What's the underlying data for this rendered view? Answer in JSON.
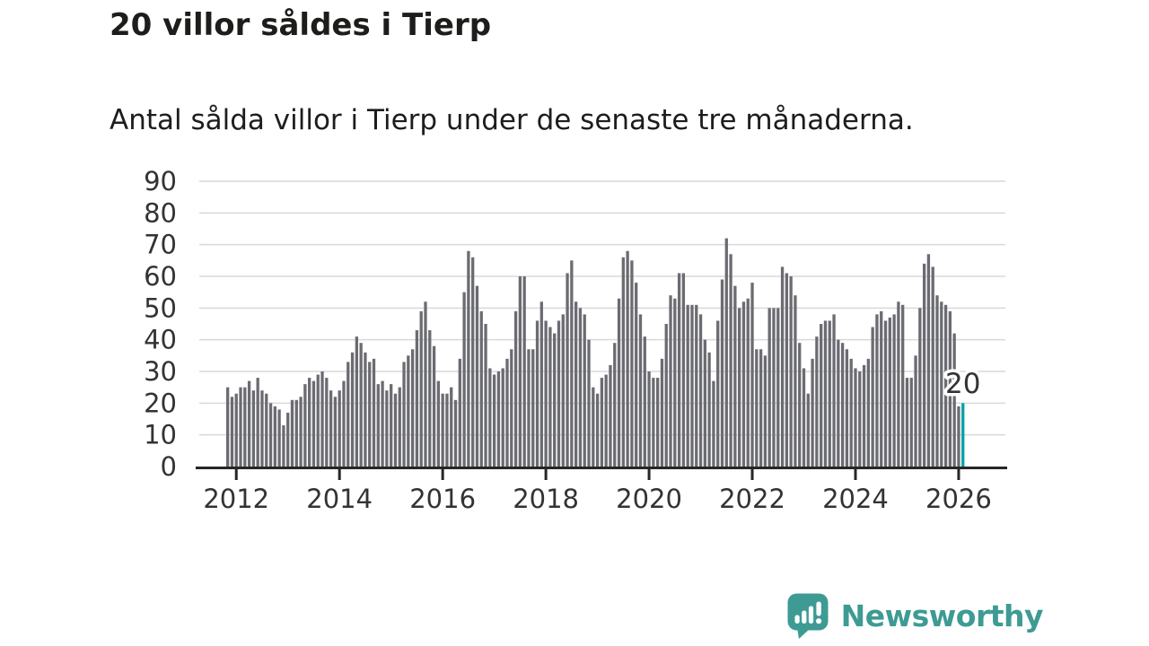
{
  "header": {
    "title": "20 villor såldes i Tierp",
    "subtitle": "Antal sålda villor i Tierp under de senaste tre månaderna."
  },
  "annotation": {
    "highlight_value_label": "20"
  },
  "logo": {
    "text": "Newsworthy",
    "icon": "newsworthy-speech-bubble-chart-icon",
    "color": "#3d9b94"
  },
  "colors": {
    "bar": "#6b6b72",
    "highlight_bar": "#00a2a6",
    "gridline": "#d9d9d9",
    "axis": "#262626",
    "tick_label": "#333333",
    "background": "#ffffff"
  },
  "chart_data": {
    "type": "bar",
    "title": "20 villor såldes i Tierp",
    "subtitle": "Antal sålda villor i Tierp under de senaste tre månaderna.",
    "ylabel": "",
    "xlabel": "",
    "x_start": "2011-11",
    "x_end": "2026-02",
    "x_frequency": "monthly",
    "x_tick_labels": [
      "2012",
      "2014",
      "2016",
      "2018",
      "2020",
      "2022",
      "2024",
      "2026"
    ],
    "x_tick_indices": [
      2,
      26,
      50,
      74,
      98,
      122,
      146,
      170
    ],
    "y_ticks": [
      0,
      10,
      20,
      30,
      40,
      50,
      60,
      70,
      80,
      90
    ],
    "ylim": [
      0,
      90
    ],
    "grid": true,
    "legend_position": "none",
    "highlight_last_bar": true,
    "highlight_last_value": 20,
    "values": [
      25,
      22,
      23,
      25,
      25,
      27,
      24,
      28,
      24,
      23,
      20,
      19,
      18,
      13,
      17,
      21,
      21,
      22,
      26,
      28,
      27,
      29,
      30,
      28,
      24,
      22,
      24,
      27,
      33,
      36,
      41,
      39,
      36,
      33,
      34,
      26,
      27,
      24,
      26,
      23,
      25,
      33,
      35,
      37,
      43,
      49,
      52,
      43,
      38,
      27,
      23,
      23,
      25,
      21,
      34,
      55,
      68,
      66,
      57,
      49,
      45,
      31,
      29,
      30,
      31,
      34,
      37,
      49,
      60,
      60,
      37,
      37,
      46,
      52,
      46,
      44,
      42,
      46,
      48,
      61,
      65,
      52,
      50,
      48,
      40,
      25,
      23,
      28,
      29,
      32,
      39,
      53,
      66,
      68,
      65,
      58,
      48,
      41,
      30,
      28,
      28,
      34,
      45,
      54,
      53,
      61,
      61,
      51,
      51,
      51,
      48,
      40,
      36,
      27,
      46,
      59,
      72,
      67,
      57,
      50,
      52,
      53,
      58,
      37,
      37,
      35,
      50,
      50,
      50,
      63,
      61,
      60,
      54,
      39,
      31,
      23,
      34,
      41,
      45,
      46,
      46,
      48,
      40,
      39,
      37,
      34,
      31,
      30,
      32,
      34,
      44,
      48,
      49,
      46,
      47,
      48,
      52,
      51,
      28,
      28,
      35,
      50,
      64,
      67,
      63,
      54,
      52,
      51,
      49,
      42,
      19,
      20
    ]
  }
}
